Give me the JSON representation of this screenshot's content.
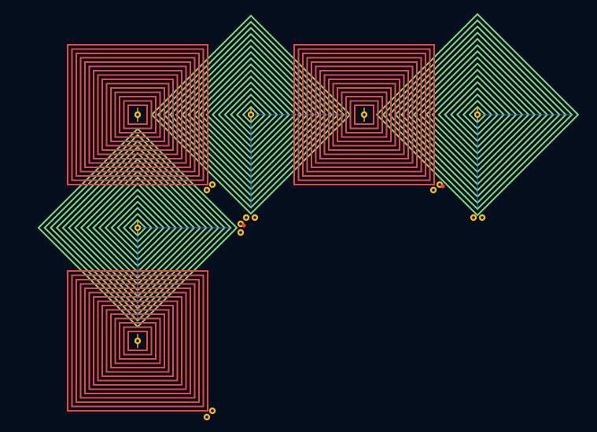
{
  "canvas": {
    "background": "#040e1d"
  },
  "colors": {
    "square_coil": "#e8473f",
    "diamond_coil": "#79d57e",
    "pad": "#f2b81c",
    "trace_blue": "#3b7bd0",
    "via_red": "#ff3b2f"
  },
  "coils": [
    {
      "id": "coil-1",
      "shape": "square",
      "turns": 15
    },
    {
      "id": "coil-2",
      "shape": "diamond",
      "turns": 16
    },
    {
      "id": "coil-3",
      "shape": "square",
      "turns": 15
    },
    {
      "id": "coil-4",
      "shape": "diamond",
      "turns": 16
    },
    {
      "id": "coil-5",
      "shape": "diamond",
      "turns": 16
    },
    {
      "id": "coil-6",
      "shape": "square",
      "turns": 15
    }
  ]
}
